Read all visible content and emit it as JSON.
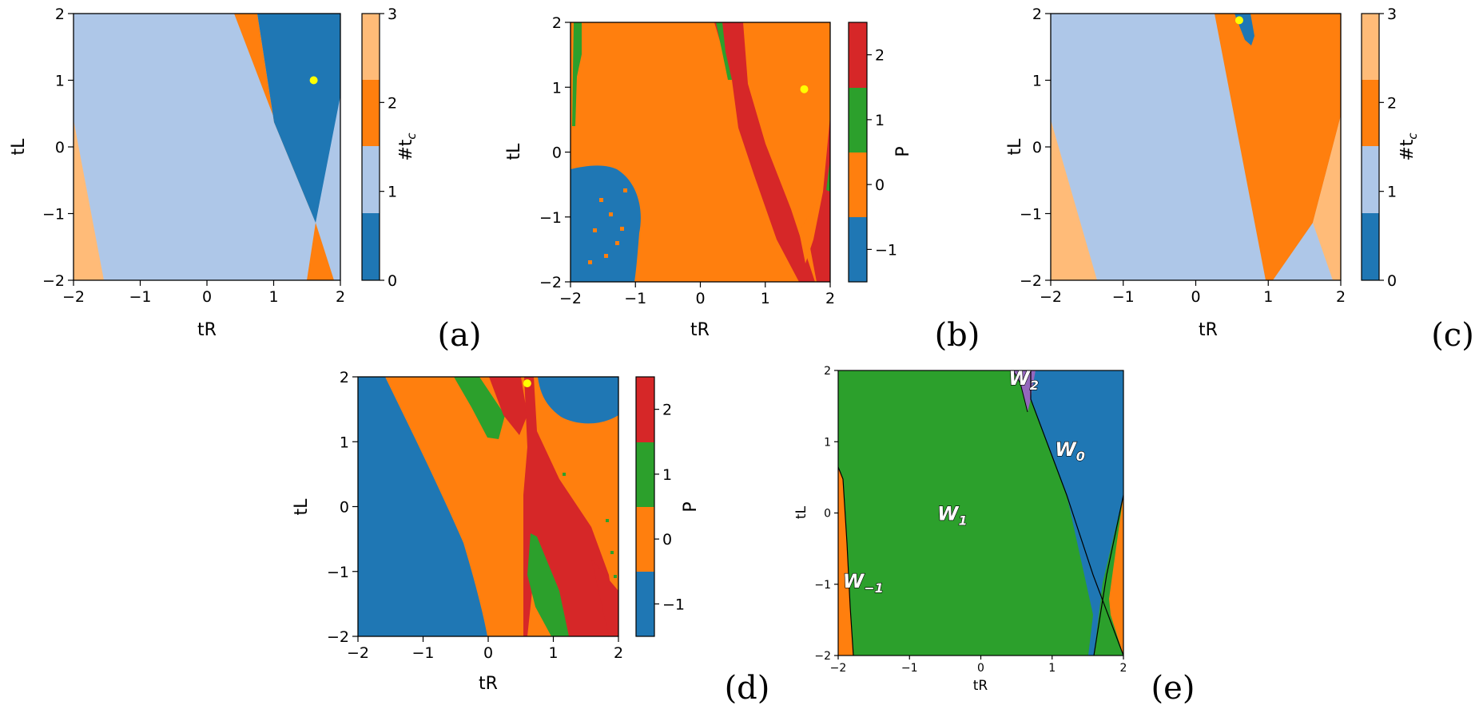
{
  "colors": {
    "blue": "#1f77b4",
    "lightblue": "#aec7e8",
    "orange": "#ff7f0e",
    "lightorange": "#ffbb78",
    "green": "#2ca02c",
    "red": "#d62728",
    "purple": "#9467bd",
    "marker": "#ffff00"
  },
  "chart_data": [
    {
      "panel": "(a)",
      "type": "heatmap",
      "xlabel": "tR",
      "ylabel": "tL",
      "xlim": [
        -2,
        2
      ],
      "ylim": [
        -2,
        2
      ],
      "xticks": [
        "−2",
        "−1",
        "0",
        "1",
        "2"
      ],
      "yticks": [
        "−2",
        "−1",
        "0",
        "1",
        "2"
      ],
      "colorbar": {
        "label": "#t_c",
        "label_text": "#t",
        "label_sub": "c",
        "ticks": [
          "0",
          "1",
          "2",
          "3"
        ],
        "levels": [
          0,
          1,
          2,
          3
        ]
      },
      "marker": {
        "x": 1.6,
        "y": 1.0
      }
    },
    {
      "panel": "(b)",
      "type": "heatmap",
      "xlabel": "tR",
      "ylabel": "tL",
      "xlim": [
        -2,
        2
      ],
      "ylim": [
        -2,
        2
      ],
      "xticks": [
        "−2",
        "−1",
        "0",
        "1",
        "2"
      ],
      "yticks": [
        "−2",
        "−1",
        "0",
        "1",
        "2"
      ],
      "colorbar": {
        "label": "P",
        "ticks": [
          "−1",
          "0",
          "1",
          "2"
        ],
        "levels": [
          -1,
          0,
          1,
          2
        ]
      },
      "marker": {
        "x": 1.6,
        "y": 0.97
      }
    },
    {
      "panel": "(c)",
      "type": "heatmap",
      "xlabel": "tR",
      "ylabel": "tL",
      "xlim": [
        -2,
        2
      ],
      "ylim": [
        -2,
        2
      ],
      "xticks": [
        "−2",
        "−1",
        "0",
        "1",
        "2"
      ],
      "yticks": [
        "−2",
        "−1",
        "0",
        "1",
        "2"
      ],
      "colorbar": {
        "label": "#t_c",
        "label_text": "#t",
        "label_sub": "c",
        "ticks": [
          "0",
          "1",
          "2",
          "3"
        ],
        "levels": [
          0,
          1,
          2,
          3
        ]
      },
      "marker": {
        "x": 0.6,
        "y": 1.9
      }
    },
    {
      "panel": "(d)",
      "type": "heatmap",
      "xlabel": "tR",
      "ylabel": "tL",
      "xlim": [
        -2,
        2
      ],
      "ylim": [
        -2,
        2
      ],
      "xticks": [
        "−2",
        "−1",
        "0",
        "1",
        "2"
      ],
      "yticks": [
        "−2",
        "−1",
        "0",
        "1",
        "2"
      ],
      "colorbar": {
        "label": "P",
        "ticks": [
          "−1",
          "0",
          "1",
          "2"
        ],
        "levels": [
          -1,
          0,
          1,
          2
        ]
      },
      "marker": {
        "x": 0.6,
        "y": 1.9
      }
    },
    {
      "panel": "(e)",
      "type": "heatmap",
      "xlabel": "tR",
      "ylabel": "tL",
      "xlim": [
        -2,
        2
      ],
      "ylim": [
        -2,
        2
      ],
      "xticks": [
        "−2",
        "−1",
        "0",
        "1",
        "2"
      ],
      "yticks": [
        "−2",
        "−1",
        "0",
        "1",
        "2"
      ],
      "regions": [
        {
          "label": "W_-1",
          "base": "W",
          "sub": "−1",
          "at": [
            -1.65,
            -1.05
          ]
        },
        {
          "label": "W_1",
          "base": "W",
          "sub": "1",
          "at": [
            -0.4,
            -0.1
          ]
        },
        {
          "label": "W_0",
          "base": "W",
          "sub": "0",
          "at": [
            1.25,
            0.8
          ]
        },
        {
          "label": "W_2",
          "base": "W",
          "sub": "2",
          "at": [
            0.6,
            1.8
          ]
        }
      ]
    }
  ]
}
